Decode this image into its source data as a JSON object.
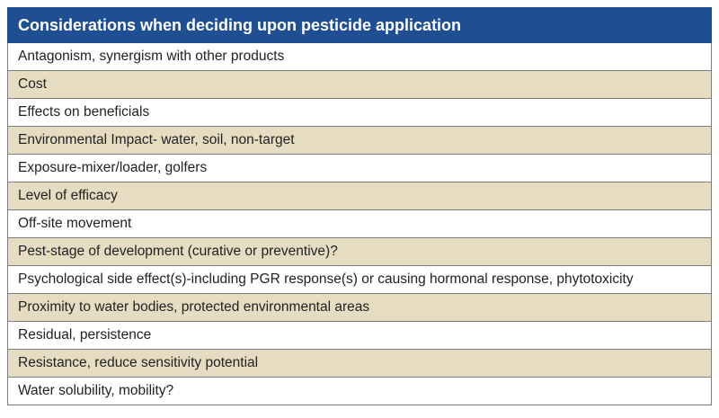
{
  "table": {
    "title": "Considerations when deciding upon pesticide application",
    "rows": [
      "Antagonism, synergism with other products",
      "Cost",
      "Effects on beneficials",
      "Environmental Impact- water, soil, non-target",
      "Exposure-mixer/loader, golfers",
      "Level of efficacy",
      "Off-site movement",
      "Pest-stage of development (curative or preventive)?",
      "Psychological side effect(s)-including PGR response(s) or causing hormonal response, phytotoxicity",
      "Proximity to water bodies, protected environmental areas",
      "Residual, persistence",
      "Resistance, reduce sensitivity potential",
      "Water solubility, mobility?"
    ]
  },
  "colors": {
    "header_background": "#1f4f92",
    "header_text": "#ffffff",
    "alternate_row": "#e5dcc2",
    "row": "#ffffff",
    "border": "#7c7c7c"
  }
}
